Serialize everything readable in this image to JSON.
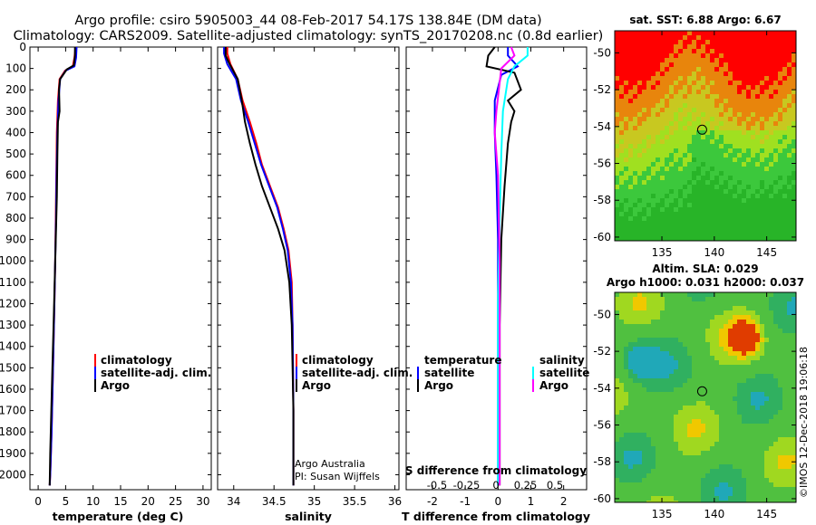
{
  "header": {
    "line1": "Argo profile: csiro 5905003_44 08-Feb-2017 54.17S 138.84E (DM data)",
    "line2": "Climatology: CARS2009. Satellite-adjusted climatology: synTS_20170208.nc (0.8d earlier)"
  },
  "colors": {
    "climatology": "#ff0000",
    "satellite": "#0000ff",
    "argo": "#000000",
    "argo_salinity": "#ff00ff",
    "satellite_salinity": "#00ffff"
  },
  "chart_data": [
    {
      "type": "line",
      "name": "temperature-profile",
      "xlabel": "temperature (deg C)",
      "ylabel": "",
      "xlim": [
        -1.5,
        31.5
      ],
      "ylim": [
        2070,
        0
      ],
      "xticks": [
        0,
        5,
        10,
        15,
        20,
        25,
        30
      ],
      "xtick_labels": [
        "0",
        "5",
        "10",
        "15",
        "20",
        "25",
        "30"
      ],
      "yticks": [
        0,
        100,
        200,
        300,
        400,
        500,
        600,
        700,
        800,
        900,
        1000,
        1100,
        1200,
        1300,
        1400,
        1500,
        1600,
        1700,
        1800,
        1900,
        2000
      ],
      "ytick_labels": [
        "0",
        "100",
        "200",
        "300",
        "400",
        "500",
        "600",
        "700",
        "800",
        "900",
        "1000",
        "1100",
        "1200",
        "1300",
        "1400",
        "1500",
        "1600",
        "1700",
        "1800",
        "1900",
        "2000"
      ],
      "legend": [
        "climatology",
        "satellite-adj. clim.",
        "Argo"
      ],
      "series": [
        {
          "name": "climatology",
          "color_key": "climatology",
          "x": [
            6.8,
            6.6,
            6.3,
            4.9,
            3.9,
            3.6,
            3.4,
            3.3,
            3.2,
            3.1,
            2.95,
            2.7,
            2.45,
            2.2,
            2.1
          ],
          "y": [
            0,
            50,
            90,
            110,
            150,
            250,
            400,
            600,
            800,
            1000,
            1200,
            1500,
            1800,
            2000,
            2050
          ]
        },
        {
          "name": "satellite-adj. clim.",
          "color_key": "satellite",
          "x": [
            7.0,
            6.9,
            6.6,
            5.0,
            4.0,
            3.7,
            3.5,
            3.35,
            3.25,
            3.1,
            2.95,
            2.7,
            2.45,
            2.2,
            2.1
          ],
          "y": [
            0,
            50,
            90,
            110,
            150,
            250,
            400,
            600,
            800,
            1000,
            1200,
            1500,
            1800,
            2000,
            2050
          ]
        },
        {
          "name": "Argo",
          "color_key": "argo",
          "x": [
            6.7,
            6.7,
            6.5,
            5.2,
            4.0,
            3.8,
            3.9,
            3.6,
            3.5,
            3.4,
            3.2,
            3.0,
            2.8,
            2.6,
            2.4,
            2.2,
            2.1
          ],
          "y": [
            0,
            40,
            85,
            105,
            150,
            200,
            300,
            350,
            500,
            700,
            900,
            1100,
            1300,
            1500,
            1700,
            1900,
            2050
          ]
        }
      ]
    },
    {
      "type": "line",
      "name": "salinity-profile",
      "xlabel": "salinity",
      "xlim": [
        33.8,
        36.05
      ],
      "ylim": [
        2070,
        0
      ],
      "xticks": [
        34,
        34.5,
        35,
        35.5,
        36
      ],
      "xtick_labels": [
        "34",
        "34.5",
        "35",
        "35.5",
        "36"
      ],
      "legend": [
        "climatology",
        "satellite-adj. clim.",
        "Argo"
      ],
      "annotation": [
        "Argo Australia",
        "PI: Susan Wijffels"
      ],
      "series": [
        {
          "name": "climatology",
          "color_key": "climatology",
          "x": [
            33.92,
            33.92,
            33.96,
            34.05,
            34.11,
            34.2,
            34.28,
            34.35,
            34.45,
            34.55,
            34.62,
            34.68,
            34.72,
            34.73,
            34.74,
            34.74
          ],
          "y": [
            0,
            30,
            80,
            150,
            250,
            350,
            450,
            550,
            650,
            750,
            850,
            950,
            1100,
            1300,
            1700,
            2050
          ]
        },
        {
          "name": "satellite-adj. clim.",
          "color_key": "satellite",
          "x": [
            33.88,
            33.88,
            33.92,
            34.03,
            34.09,
            34.18,
            34.26,
            34.34,
            34.44,
            34.54,
            34.61,
            34.67,
            34.71,
            34.73,
            34.74,
            34.74
          ],
          "y": [
            0,
            30,
            80,
            150,
            250,
            350,
            450,
            550,
            650,
            750,
            850,
            950,
            1100,
            1300,
            1700,
            2050
          ]
        },
        {
          "name": "Argo",
          "color_key": "argo",
          "x": [
            33.9,
            33.9,
            33.95,
            34.05,
            34.1,
            34.14,
            34.2,
            34.27,
            34.35,
            34.45,
            34.55,
            34.63,
            34.69,
            34.72,
            34.74,
            34.74
          ],
          "y": [
            0,
            40,
            80,
            150,
            250,
            350,
            450,
            550,
            650,
            750,
            850,
            950,
            1100,
            1300,
            1700,
            2050
          ]
        }
      ]
    },
    {
      "type": "line",
      "name": "difference-profile",
      "xlabel": "T difference from climatology",
      "xlabel2": "S difference from climatology",
      "xlim": [
        -2.8,
        2.7
      ],
      "ylim": [
        2070,
        0
      ],
      "xticks": [
        -2,
        -1,
        0,
        1,
        2
      ],
      "xtick_labels": [
        "-2",
        "-1",
        "0",
        "1",
        "2"
      ],
      "sticks": [
        -0.5,
        -0.25,
        0,
        0.25,
        0.5
      ],
      "stick_labels": [
        "-0.5",
        "-0.25",
        "0",
        "0.25",
        "0.5"
      ],
      "legend_temperature": [
        "temperature",
        "satellite",
        "Argo"
      ],
      "legend_salinity": [
        "salinity",
        "satellite",
        "Argo"
      ],
      "series": [
        {
          "name": "temperature satellite",
          "color_key": "satellite",
          "x": [
            0.3,
            0.3,
            0.6,
            0.1,
            -0.1,
            -0.1,
            -0.05,
            0,
            0,
            0,
            0
          ],
          "y": [
            0,
            40,
            90,
            130,
            250,
            400,
            600,
            900,
            1200,
            1600,
            2050
          ]
        },
        {
          "name": "temperature Argo",
          "color_key": "argo",
          "x": [
            -0.1,
            -0.3,
            -0.35,
            0.5,
            0.7,
            0.3,
            0.5,
            0.4,
            0.3,
            0.2,
            0.1,
            0.05,
            0.05
          ],
          "y": [
            0,
            40,
            90,
            120,
            200,
            250,
            300,
            350,
            450,
            650,
            900,
            1300,
            2050
          ]
        },
        {
          "name": "salinity satellite",
          "color_key": "satellite_salinity",
          "x": [
            0.9,
            0.9,
            0.5,
            0.3,
            0.15,
            0.1,
            0.05,
            0.0,
            0.0
          ],
          "y": [
            0,
            40,
            90,
            150,
            300,
            500,
            800,
            1200,
            2050
          ]
        },
        {
          "name": "salinity Argo",
          "color_key": "argo_salinity",
          "x": [
            0.4,
            0.5,
            0.1,
            -0.05,
            -0.1,
            0.0,
            0.05,
            0.05
          ],
          "y": [
            0,
            40,
            100,
            300,
            400,
            600,
            1000,
            2050
          ]
        }
      ]
    },
    {
      "type": "heatmap",
      "name": "sst-map",
      "title": "sat. SST: 6.88  Argo: 6.67",
      "xlim": [
        130.5,
        147.8
      ],
      "ylim": [
        -60.2,
        -48.8
      ],
      "xticks": [
        135,
        140,
        145
      ],
      "xtick_labels": [
        "135",
        "140",
        "145"
      ],
      "yticks": [
        -50,
        -52,
        -54,
        -56,
        -58,
        -60
      ],
      "ytick_labels": [
        "-50",
        "-52",
        "-54",
        "-56",
        "-58",
        "-60"
      ],
      "marker": {
        "lon": 138.84,
        "lat": -54.17
      }
    },
    {
      "type": "heatmap",
      "name": "sla-map",
      "title": "Altim. SLA: 0.029",
      "subtitle": "Argo h1000: 0.031 h2000: 0.037",
      "xlim": [
        130.5,
        147.8
      ],
      "ylim": [
        -60.2,
        -48.8
      ],
      "xticks": [
        135,
        140,
        145
      ],
      "xtick_labels": [
        "135",
        "140",
        "145"
      ],
      "yticks": [
        -50,
        -52,
        -54,
        -56,
        -58,
        -60
      ],
      "ytick_labels": [
        "-50",
        "-52",
        "-54",
        "-56",
        "-58",
        "-60"
      ],
      "marker": {
        "lon": 138.84,
        "lat": -54.17
      }
    }
  ],
  "credit": "©IMOS 12-Dec-2018 19:06:18"
}
